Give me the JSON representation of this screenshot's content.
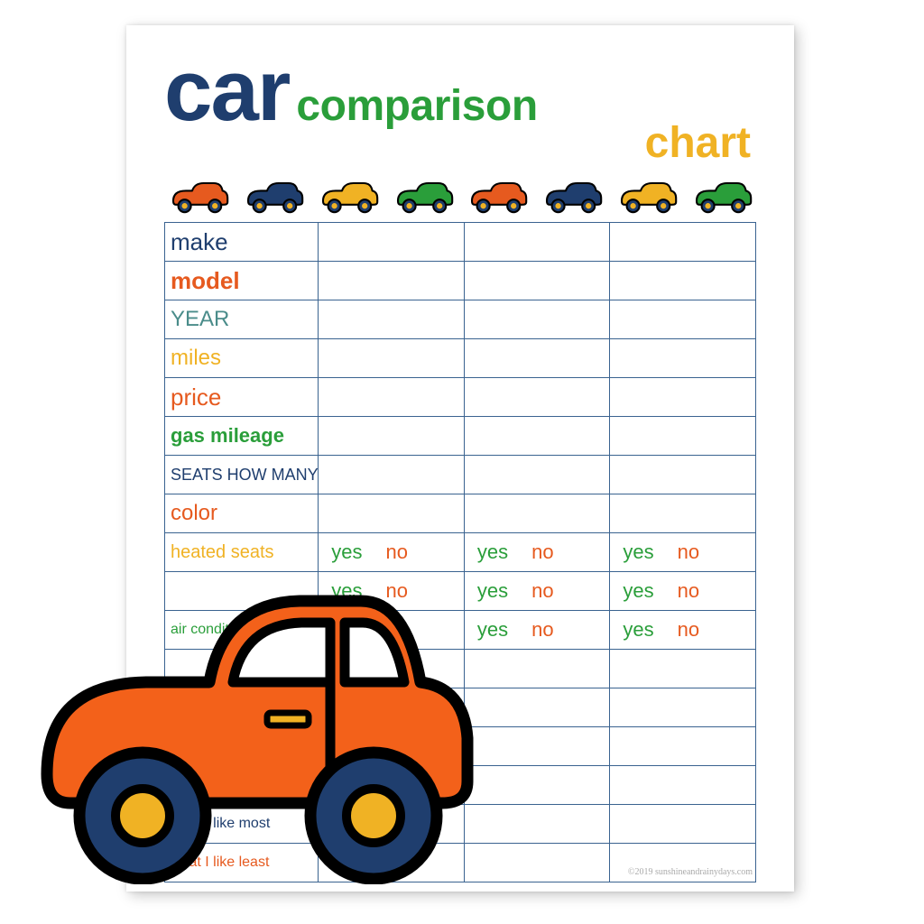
{
  "colors": {
    "navy": "#1f3e6e",
    "green": "#2a9e3a",
    "orange": "#e65a1f",
    "orange_bright": "#f3611a",
    "yellow": "#f0b224",
    "teal": "#4a8c8a",
    "border": "#3a6390",
    "bg": "#ffffff",
    "page_bg": "#ffffff",
    "footer": "#aaaaaa",
    "black": "#000000"
  },
  "title": {
    "car": {
      "text": "car",
      "color": "#1f3e6e",
      "fontsize": 96
    },
    "comparison": {
      "text": "comparison",
      "color": "#2a9e3a",
      "fontsize": 48
    },
    "chart": {
      "text": "chart",
      "color": "#f0b224",
      "fontsize": 48
    }
  },
  "mini_car_colors": [
    "#e65a1f",
    "#1f3e6e",
    "#f0b224",
    "#2a9e3a",
    "#e65a1f",
    "#1f3e6e",
    "#f0b224",
    "#2a9e3a"
  ],
  "yesno": {
    "yes": "yes",
    "no": "no",
    "yes_color": "#2a9e3a",
    "no_color": "#e65a1f"
  },
  "columns": 3,
  "label_col_width_pct": 26,
  "rows": [
    {
      "label": "make",
      "color": "#1f3e6e",
      "yesno": false,
      "fontsize": 26
    },
    {
      "label": "model",
      "color": "#e65a1f",
      "yesno": false,
      "fontsize": 26,
      "weight": 700
    },
    {
      "label": "YEAR",
      "color": "#4a8c8a",
      "yesno": false,
      "fontsize": 24,
      "caps": true
    },
    {
      "label": "miles",
      "color": "#f0b224",
      "yesno": false,
      "fontsize": 24
    },
    {
      "label": "price",
      "color": "#e65a1f",
      "yesno": false,
      "fontsize": 26
    },
    {
      "label": "gas mileage",
      "color": "#2a9e3a",
      "yesno": false,
      "fontsize": 22,
      "weight": 700
    },
    {
      "label": "SEATS HOW MANY",
      "color": "#1f3e6e",
      "yesno": false,
      "fontsize": 18,
      "caps": true
    },
    {
      "label": "color",
      "color": "#e65a1f",
      "yesno": false,
      "fontsize": 24
    },
    {
      "label": "heated seats",
      "color": "#f0b224",
      "yesno": true,
      "fontsize": 20
    },
    {
      "label": "",
      "color": "#2a9e3a",
      "yesno": true,
      "fontsize": 20
    },
    {
      "label": "air conditioning",
      "color": "#2a9e3a",
      "yesno": true,
      "fontsize": 16
    },
    {
      "label": "",
      "color": "#1f3e6e",
      "yesno": false
    },
    {
      "label": "",
      "color": "#1f3e6e",
      "yesno": false
    },
    {
      "label": "",
      "color": "#1f3e6e",
      "yesno": false
    },
    {
      "label": "",
      "color": "#1f3e6e",
      "yesno": false
    },
    {
      "label": "what I like most",
      "color": "#1f3e6e",
      "yesno": false,
      "fontsize": 16
    },
    {
      "label": "what I like least",
      "color": "#e65a1f",
      "yesno": false,
      "fontsize": 16
    }
  ],
  "big_car": {
    "body_color": "#f3611a",
    "outline": "#000000",
    "wheel_outer": "#1f3e6e",
    "wheel_inner": "#f0b224",
    "window": "#ffffff",
    "handle": "#f0b224"
  },
  "footer": "©2019 sunshineandrainydays.com"
}
